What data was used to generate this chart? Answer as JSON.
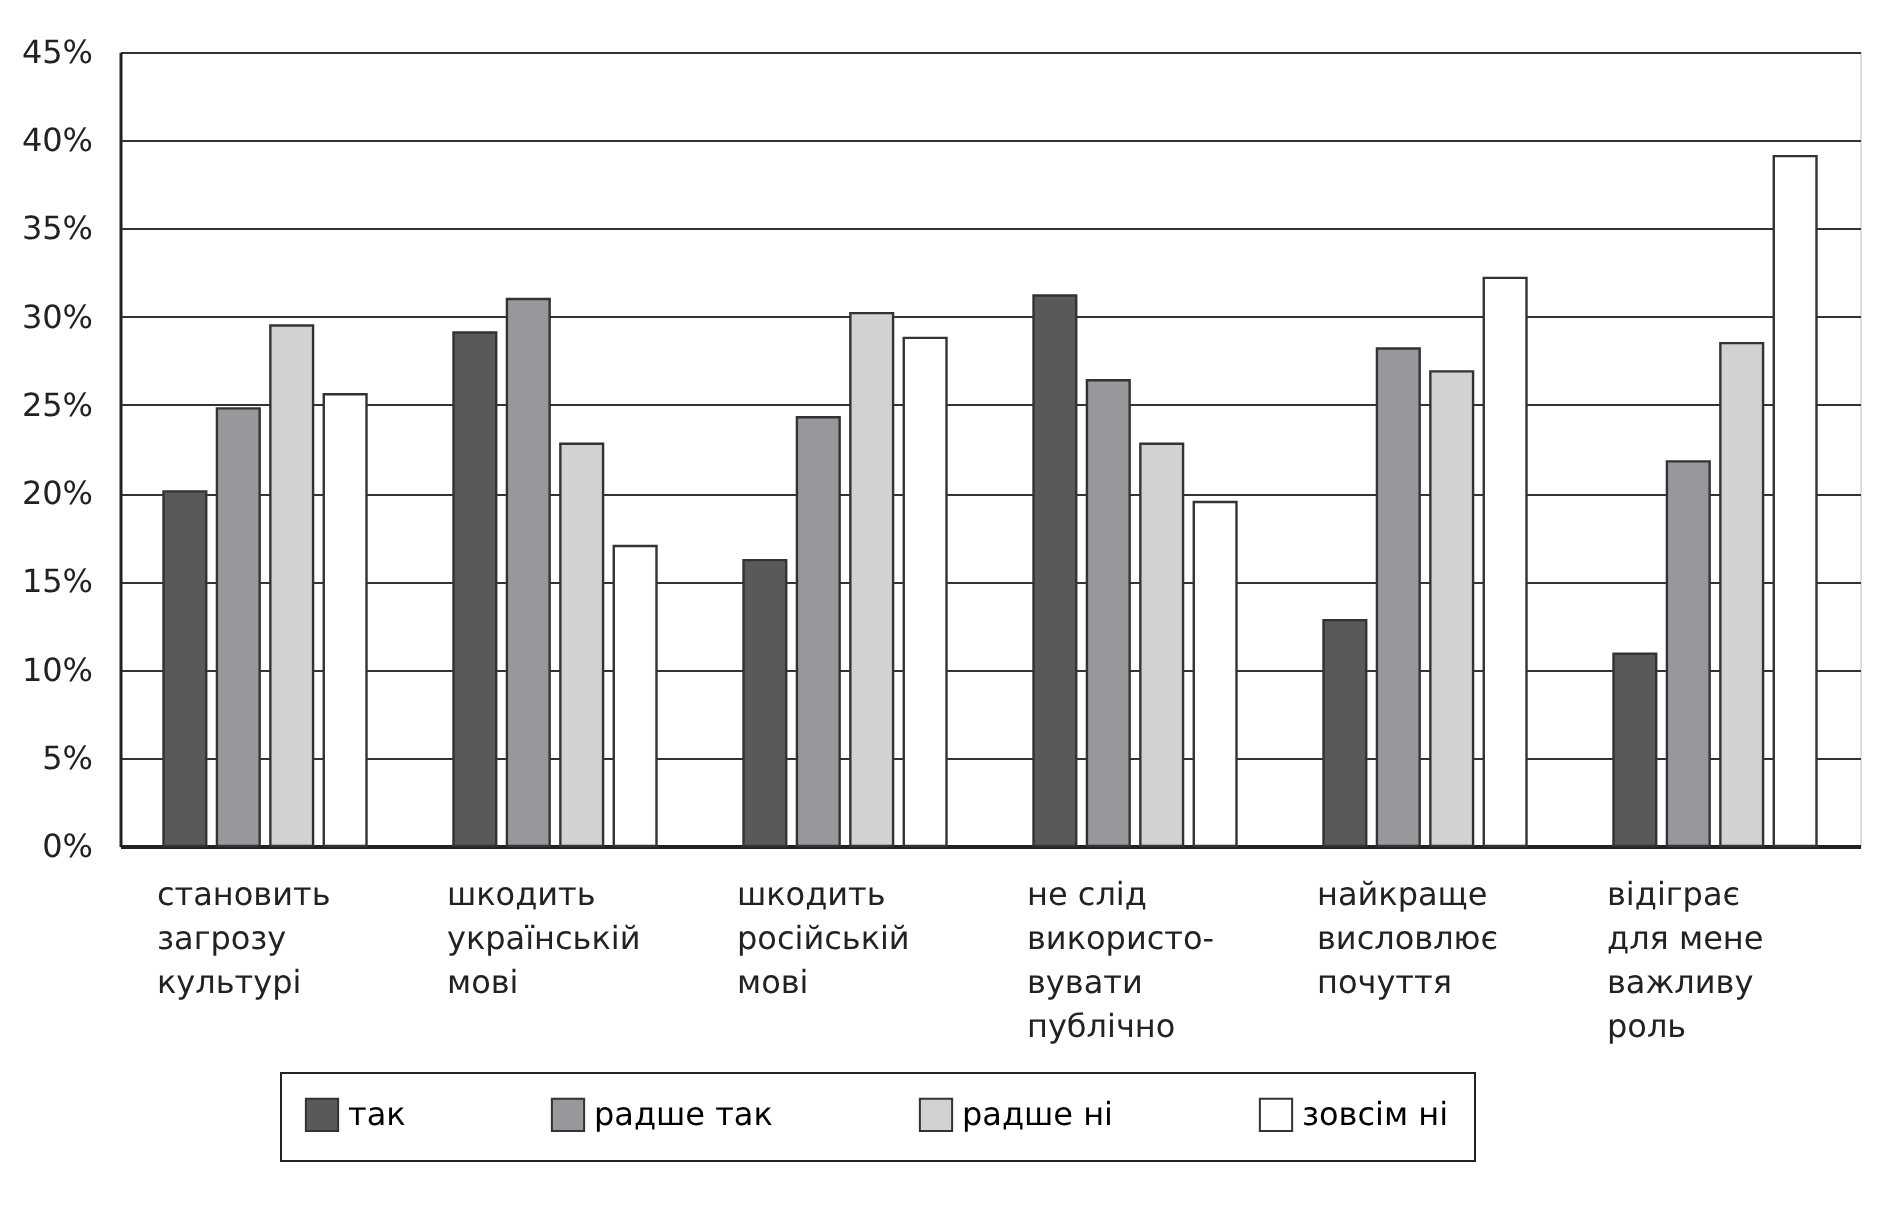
{
  "chart_data": {
    "type": "bar",
    "categories": [
      "становить\nзагрозу\nкультурі",
      "шкодить\nукраїнській\nмові",
      "шкодить\nросійській\nмові",
      "не слід\nвикористо-\nвувати\nпублічно",
      "найкраще\nвисловлює\nпочуття",
      "відіграє\nдля мене\nважливу\nроль"
    ],
    "series": [
      {
        "name": "так",
        "color": "#58595b",
        "values": [
          20.1,
          29.1,
          16.2,
          31.2,
          12.8,
          10.9
        ]
      },
      {
        "name": "радше так",
        "color": "#97989b",
        "values": [
          24.8,
          31.0,
          24.3,
          26.4,
          28.2,
          21.8
        ]
      },
      {
        "name": "радше ні",
        "color": "#d1d2d4",
        "values": [
          29.5,
          22.8,
          30.2,
          22.8,
          26.9,
          28.5
        ]
      },
      {
        "name": "зовсім ні",
        "color": "#ffffff",
        "values": [
          25.6,
          17.0,
          28.8,
          19.5,
          32.2,
          39.1
        ]
      }
    ],
    "ylim": [
      0,
      45
    ],
    "yticks": [
      {
        "value": 0,
        "label": "0%"
      },
      {
        "value": 5,
        "label": "5%"
      },
      {
        "value": 10,
        "label": "10%"
      },
      {
        "value": 15,
        "label": "15%"
      },
      {
        "value": 20,
        "label": "20%"
      },
      {
        "value": 25,
        "label": "25%"
      },
      {
        "value": 30,
        "label": "30%"
      },
      {
        "value": 35,
        "label": "35%"
      },
      {
        "value": 40,
        "label": "40%"
      },
      {
        "value": 45,
        "label": "45%"
      }
    ],
    "grid": "y",
    "legend": "bottom"
  }
}
